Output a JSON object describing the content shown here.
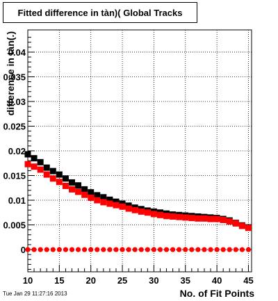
{
  "title": "Fitted difference in tàn)( Global Tracks",
  "timestamp": "Tue Jan 29 11:27:16 2013",
  "chart_data": {
    "type": "scatter",
    "title": "Fitted difference in tàn)( Global Tracks",
    "xlabel": "No. of Fit Points",
    "ylabel": "difference in tàn(.)",
    "xlim": [
      10,
      45.5
    ],
    "ylim": [
      -0.0045,
      0.0445
    ],
    "xticks": [
      "10",
      "15",
      "20",
      "25",
      "30",
      "35",
      "40",
      "45"
    ],
    "yticks": [
      "0",
      "0.005",
      "0.01",
      "0.015",
      "0.02",
      "0.025",
      "0.03",
      "0.035",
      "0.04"
    ],
    "grid": true,
    "x": [
      10,
      11,
      12,
      13,
      14,
      15,
      16,
      17,
      18,
      19,
      20,
      21,
      22,
      23,
      24,
      25,
      26,
      27,
      28,
      29,
      30,
      31,
      32,
      33,
      34,
      35,
      36,
      37,
      38,
      39,
      40,
      41,
      42,
      43,
      44,
      45
    ],
    "series": [
      {
        "color": "#000000",
        "marker": "square",
        "values": [
          0.0193,
          0.0185,
          0.0177,
          0.0166,
          0.0159,
          0.0152,
          0.0144,
          0.0136,
          0.013,
          0.0122,
          0.0116,
          0.011,
          0.0106,
          0.0101,
          0.0097,
          0.0093,
          0.0089,
          0.0085,
          0.0082,
          0.0079,
          0.0077,
          0.0075,
          0.0073,
          0.0071,
          0.007,
          0.0069,
          0.0068,
          0.0067,
          0.0066,
          0.0065,
          0.0064,
          0.0062,
          0.0059,
          0.0054,
          0.0049,
          0.0045
        ]
      },
      {
        "color": "#ff0000",
        "marker": "square",
        "values": [
          0.0173,
          0.0168,
          0.0162,
          0.0152,
          0.0144,
          0.0137,
          0.0129,
          0.0122,
          0.0117,
          0.0111,
          0.0105,
          0.01,
          0.0096,
          0.0093,
          0.009,
          0.0087,
          0.0083,
          0.008,
          0.0077,
          0.0075,
          0.0072,
          0.007,
          0.0068,
          0.0067,
          0.0066,
          0.0065,
          0.0064,
          0.0063,
          0.0063,
          0.0062,
          0.0062,
          0.006,
          0.0057,
          0.0053,
          0.0048,
          0.0044
        ]
      },
      {
        "color": "#ff0000",
        "marker": "circle",
        "values": [
          0,
          0,
          0,
          0,
          0,
          0,
          0,
          0,
          0,
          0,
          0,
          0,
          0,
          0,
          0,
          0,
          0,
          0,
          0,
          0,
          0,
          0,
          0,
          0,
          0,
          0,
          0,
          0,
          0,
          0,
          0,
          0,
          0,
          0,
          0,
          0
        ]
      }
    ]
  }
}
